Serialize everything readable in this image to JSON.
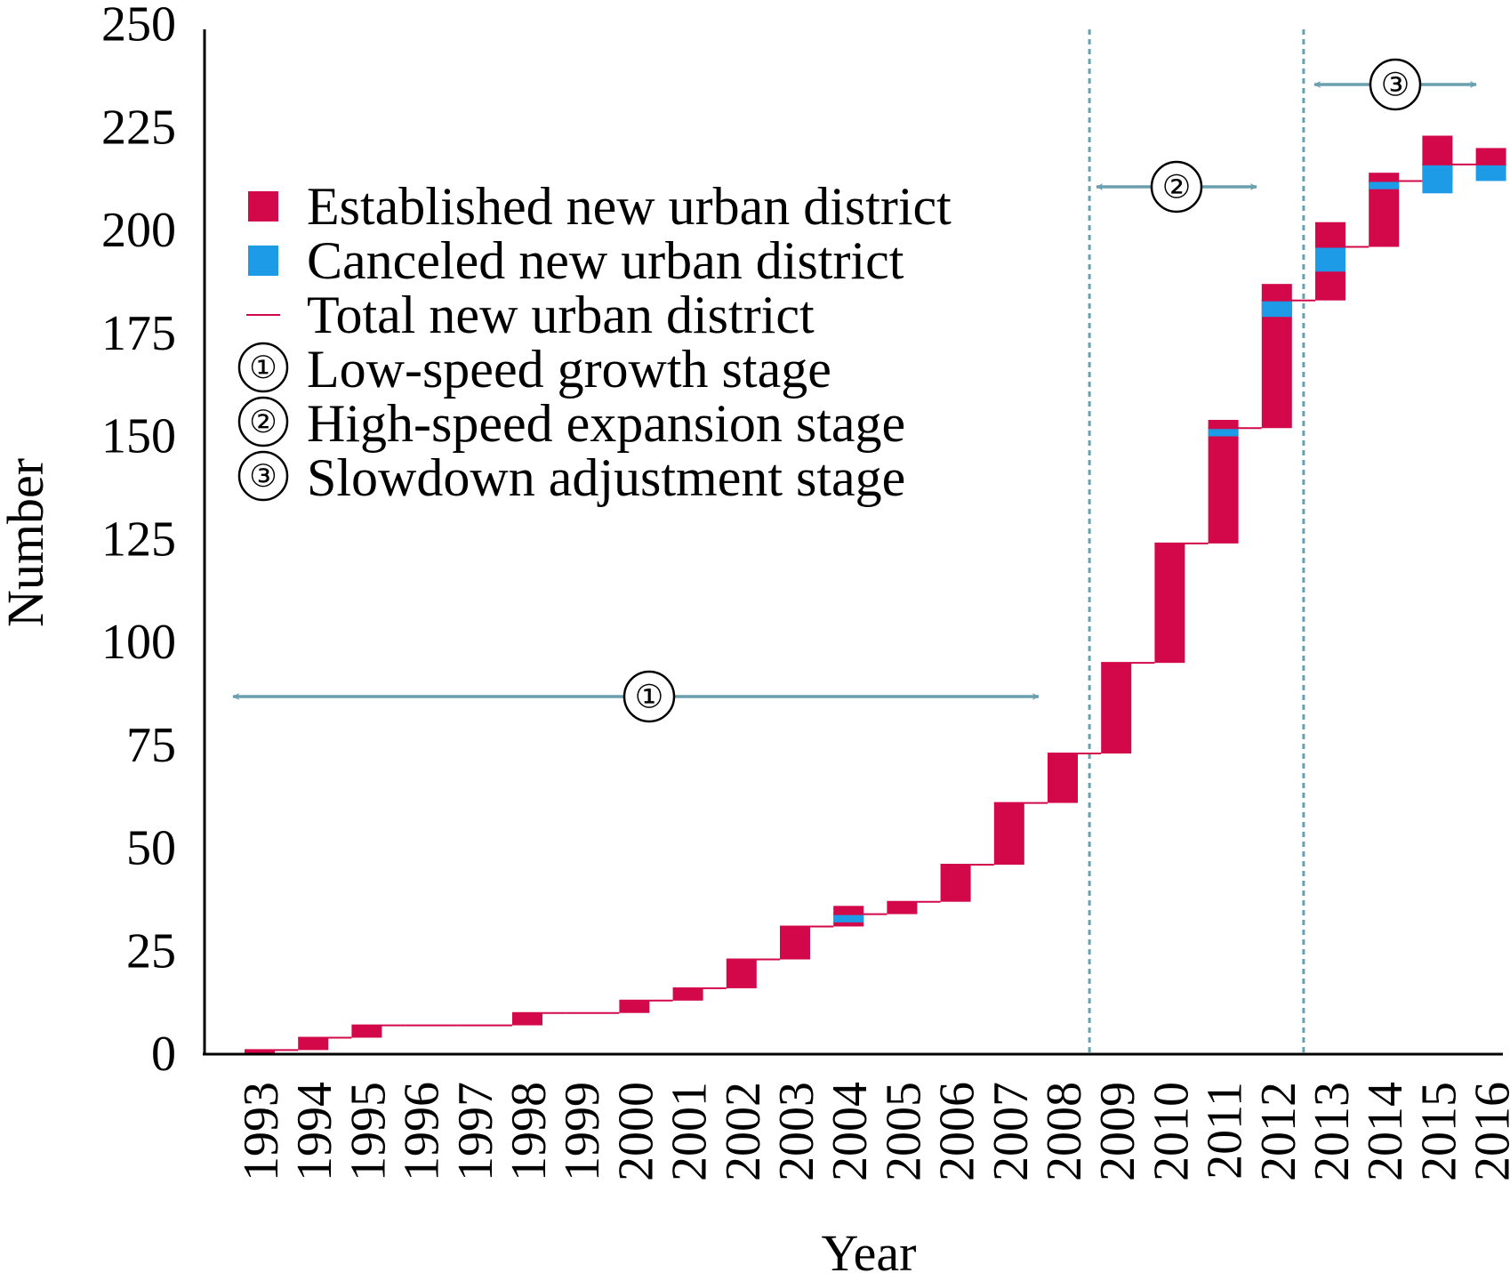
{
  "chart_data": {
    "type": "waterfall",
    "xlabel": "Year",
    "ylabel": "Number",
    "ylim": [
      0,
      250
    ],
    "yticks": [
      0,
      25,
      50,
      75,
      100,
      125,
      150,
      175,
      200,
      225,
      250
    ],
    "categories": [
      "1993",
      "1994",
      "1995",
      "1996",
      "1997",
      "1998",
      "1999",
      "2000",
      "2001",
      "2002",
      "2003",
      "2004",
      "2005",
      "2006",
      "2007",
      "2008",
      "2009",
      "2010",
      "2011",
      "2012",
      "2013",
      "2014",
      "2015",
      "2016"
    ],
    "series": [
      {
        "name": "Established new urban district",
        "values": [
          1,
          3,
          3,
          0,
          0,
          3,
          0,
          3,
          3,
          7,
          8,
          5,
          3,
          9,
          15,
          12,
          22,
          29,
          30,
          35,
          19,
          18,
          11,
          4
        ]
      },
      {
        "name": "Canceled new urban district",
        "values": [
          0,
          0,
          0,
          0,
          0,
          0,
          0,
          0,
          0,
          0,
          0,
          2,
          0,
          0,
          0,
          0,
          0,
          0,
          2,
          4,
          6,
          2,
          7,
          4
        ]
      },
      {
        "name": "Total new urban district",
        "values": [
          1,
          4,
          7,
          7,
          7,
          10,
          10,
          13,
          16,
          23,
          31,
          34,
          37,
          46,
          61,
          73,
          95,
          124,
          152,
          183,
          196,
          212,
          216,
          216
        ]
      }
    ],
    "colors": {
      "established": "#d2084a",
      "canceled": "#1e9be6",
      "total": "#d2084a",
      "stage_line": "#6a9fb0"
    },
    "stages": [
      {
        "marker": "①",
        "label": "Low-speed growth stage",
        "from": "1993",
        "to": "2008"
      },
      {
        "marker": "②",
        "label": "High-speed expansion stage",
        "from": "2009",
        "to": "2012"
      },
      {
        "marker": "③",
        "label": "Slowdown adjustment stage",
        "from": "2013",
        "to": "2016"
      }
    ],
    "legend": {
      "placement": "top-left",
      "entries": [
        {
          "icon": "red-square",
          "label": "Established new urban district"
        },
        {
          "icon": "blue-square",
          "label": "Canceled new urban district"
        },
        {
          "icon": "red-line",
          "label": "Total new urban district"
        },
        {
          "icon": "circle-1",
          "marker": "①",
          "label": "Low-speed growth stage"
        },
        {
          "icon": "circle-2",
          "marker": "②",
          "label": "High-speed expansion stage"
        },
        {
          "icon": "circle-3",
          "marker": "③",
          "label": "Slowdown adjustment stage"
        }
      ]
    }
  }
}
